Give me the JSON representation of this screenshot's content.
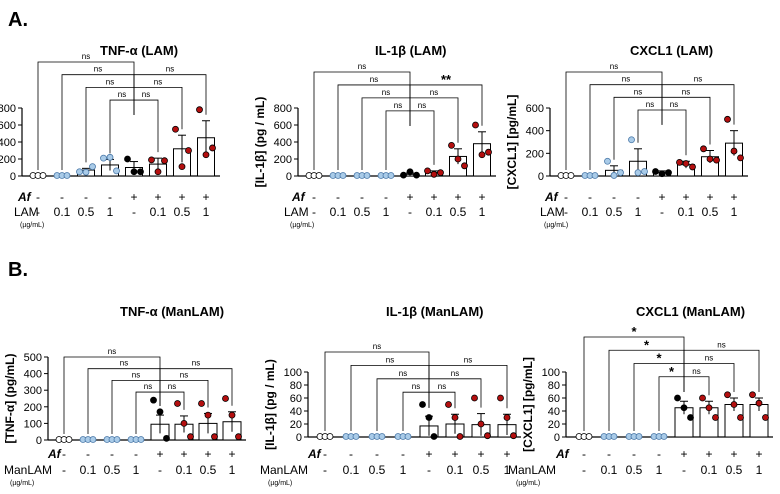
{
  "figure": {
    "panel_a_label": "A.",
    "panel_b_label": "B.",
    "colors": {
      "none": "#ffffff",
      "lam_only": "#a9cbe8",
      "af_only": "#000000",
      "af_lam": "#b40f0f",
      "line": "#000000"
    },
    "af_label": "Af",
    "unit_label": "(µg/mL)",
    "treatment_labels": [
      "-",
      "0.1",
      "0.5",
      "1",
      "-",
      "0.1",
      "0.5",
      "1"
    ],
    "af_marks": [
      "-",
      "-",
      "-",
      "-",
      "+",
      "+",
      "+",
      "+"
    ],
    "marker_types": [
      "none",
      "lam_only",
      "lam_only",
      "lam_only",
      "af_only",
      "af_lam",
      "af_lam",
      "af_lam"
    ]
  },
  "chart_data": [
    {
      "id": "a1",
      "type": "bar",
      "title": "TNF-α (LAM)",
      "ylabel": "[TNF-α] (pg/mL)",
      "stimulus": "LAM",
      "ylim": [
        0,
        800
      ],
      "yticks": [
        0,
        200,
        400,
        600,
        800
      ],
      "categories": [
        "-",
        "0.1",
        "0.5",
        "1",
        "-",
        "0.1",
        "0.5",
        "1"
      ],
      "means": [
        0,
        0,
        70,
        130,
        100,
        140,
        320,
        450
      ],
      "errors": [
        0,
        0,
        20,
        65,
        70,
        70,
        160,
        200
      ],
      "points": [
        [
          0,
          0,
          0
        ],
        [
          0,
          0,
          0
        ],
        [
          50,
          45,
          110
        ],
        [
          210,
          220,
          60
        ],
        [
          200,
          50,
          50
        ],
        [
          190,
          50,
          180
        ],
        [
          550,
          110,
          300
        ],
        [
          780,
          250,
          330
        ]
      ],
      "significance": [
        {
          "from": 4,
          "to": 0,
          "label": "ns"
        },
        {
          "from": 4,
          "to": 1,
          "label": "ns"
        },
        {
          "from": 4,
          "to": 2,
          "label": "ns"
        },
        {
          "from": 4,
          "to": 3,
          "label": "ns"
        },
        {
          "from": 4,
          "to": 5,
          "label": "ns"
        },
        {
          "from": 4,
          "to": 6,
          "label": "ns"
        },
        {
          "from": 4,
          "to": 7,
          "label": "ns"
        }
      ]
    },
    {
      "id": "a2",
      "type": "bar",
      "title": "IL-1β (LAM)",
      "ylabel": "[IL-1β] (pg / mL)",
      "stimulus": "LAM",
      "ylim": [
        0,
        800
      ],
      "yticks": [
        0,
        200,
        400,
        600,
        800
      ],
      "categories": [
        "-",
        "0.1",
        "0.5",
        "1",
        "-",
        "0.1",
        "0.5",
        "1"
      ],
      "means": [
        0,
        0,
        0,
        0,
        20,
        40,
        230,
        380
      ],
      "errors": [
        0,
        0,
        0,
        0,
        15,
        20,
        90,
        140
      ],
      "points": [
        [
          0,
          0,
          0
        ],
        [
          0,
          0,
          0
        ],
        [
          0,
          0,
          0
        ],
        [
          0,
          0,
          0
        ],
        [
          10,
          50,
          10
        ],
        [
          60,
          20,
          40
        ],
        [
          360,
          200,
          120
        ],
        [
          600,
          250,
          280
        ]
      ],
      "significance": [
        {
          "from": 4,
          "to": 0,
          "label": "ns"
        },
        {
          "from": 4,
          "to": 1,
          "label": "ns"
        },
        {
          "from": 4,
          "to": 2,
          "label": "ns"
        },
        {
          "from": 4,
          "to": 3,
          "label": "ns"
        },
        {
          "from": 4,
          "to": 5,
          "label": "ns"
        },
        {
          "from": 4,
          "to": 6,
          "label": "ns"
        },
        {
          "from": 4,
          "to": 7,
          "label": "**"
        }
      ]
    },
    {
      "id": "a3",
      "type": "bar",
      "title": "CXCL1 (LAM)",
      "ylabel": "[CXCL1] [pg/mL]",
      "stimulus": "LAM",
      "ylim": [
        0,
        600
      ],
      "yticks": [
        0,
        200,
        400,
        600
      ],
      "categories": [
        "-",
        "0.1",
        "0.5",
        "1",
        "-",
        "0.1",
        "0.5",
        "1"
      ],
      "means": [
        0,
        0,
        50,
        130,
        30,
        100,
        170,
        290
      ],
      "errors": [
        0,
        0,
        40,
        110,
        15,
        30,
        55,
        110
      ],
      "points": [
        [
          0,
          0,
          0
        ],
        [
          0,
          0,
          0
        ],
        [
          130,
          5,
          30
        ],
        [
          320,
          30,
          40
        ],
        [
          40,
          20,
          30
        ],
        [
          120,
          110,
          80
        ],
        [
          240,
          150,
          140
        ],
        [
          500,
          220,
          160
        ]
      ],
      "significance": [
        {
          "from": 4,
          "to": 0,
          "label": "ns"
        },
        {
          "from": 4,
          "to": 1,
          "label": "ns"
        },
        {
          "from": 4,
          "to": 2,
          "label": "ns"
        },
        {
          "from": 4,
          "to": 3,
          "label": "ns"
        },
        {
          "from": 4,
          "to": 5,
          "label": "ns"
        },
        {
          "from": 4,
          "to": 6,
          "label": "ns"
        },
        {
          "from": 4,
          "to": 7,
          "label": "ns"
        }
      ]
    },
    {
      "id": "b1",
      "type": "bar",
      "title": "TNF-α (ManLAM)",
      "ylabel": "[TNF-α] (pg/mL)",
      "stimulus": "ManLAM",
      "ylim": [
        0,
        500
      ],
      "yticks": [
        0,
        100,
        200,
        300,
        400,
        500
      ],
      "categories": [
        "-",
        "0.1",
        "0.5",
        "1",
        "-",
        "0.1",
        "0.5",
        "1"
      ],
      "means": [
        0,
        0,
        0,
        0,
        95,
        95,
        100,
        110
      ],
      "errors": [
        0,
        0,
        0,
        0,
        55,
        50,
        60,
        60
      ],
      "points": [
        [
          0,
          0,
          0
        ],
        [
          0,
          0,
          0
        ],
        [
          0,
          0,
          0
        ],
        [
          0,
          0,
          0
        ],
        [
          240,
          170,
          10
        ],
        [
          220,
          100,
          20
        ],
        [
          220,
          150,
          20
        ],
        [
          250,
          150,
          20
        ]
      ],
      "significance": [
        {
          "from": 4,
          "to": 0,
          "label": "ns"
        },
        {
          "from": 4,
          "to": 1,
          "label": "ns"
        },
        {
          "from": 4,
          "to": 2,
          "label": "ns"
        },
        {
          "from": 4,
          "to": 3,
          "label": "ns"
        },
        {
          "from": 4,
          "to": 5,
          "label": "ns"
        },
        {
          "from": 4,
          "to": 6,
          "label": "ns"
        },
        {
          "from": 4,
          "to": 7,
          "label": "ns"
        }
      ]
    },
    {
      "id": "b2",
      "type": "bar",
      "title": "IL-1β (ManLAM)",
      "ylabel": "[IL-1β] (pg / mL)",
      "stimulus": "ManLAM",
      "ylim": [
        0,
        100
      ],
      "yticks": [
        0,
        20,
        40,
        60,
        80,
        100
      ],
      "categories": [
        "-",
        "0.1",
        "0.5",
        "1",
        "-",
        "0.1",
        "0.5",
        "1"
      ],
      "means": [
        0,
        0,
        0,
        0,
        17,
        20,
        19,
        19
      ],
      "errors": [
        0,
        0,
        0,
        0,
        15,
        15,
        17,
        16
      ],
      "points": [
        [
          0,
          0,
          0
        ],
        [
          0,
          0,
          0
        ],
        [
          0,
          0,
          0
        ],
        [
          0,
          0,
          0
        ],
        [
          50,
          30,
          0
        ],
        [
          50,
          30,
          0
        ],
        [
          60,
          20,
          2
        ],
        [
          60,
          30,
          2
        ]
      ],
      "significance": [
        {
          "from": 4,
          "to": 0,
          "label": "ns"
        },
        {
          "from": 4,
          "to": 1,
          "label": "ns"
        },
        {
          "from": 4,
          "to": 2,
          "label": "ns"
        },
        {
          "from": 4,
          "to": 3,
          "label": "ns"
        },
        {
          "from": 4,
          "to": 5,
          "label": "ns"
        },
        {
          "from": 4,
          "to": 6,
          "label": "ns"
        },
        {
          "from": 4,
          "to": 7,
          "label": "ns"
        }
      ]
    },
    {
      "id": "b3",
      "type": "bar",
      "title": "CXCL1 (ManLAM)",
      "ylabel": "[CXCL1] [pg/mL]",
      "stimulus": "ManLAM",
      "ylim": [
        0,
        100
      ],
      "yticks": [
        0,
        20,
        40,
        60,
        80,
        100
      ],
      "categories": [
        "-",
        "0.1",
        "0.5",
        "1",
        "-",
        "0.1",
        "0.5",
        "1"
      ],
      "means": [
        0,
        0,
        0,
        0,
        45,
        45,
        50,
        50
      ],
      "errors": [
        0,
        0,
        0,
        0,
        10,
        10,
        10,
        10
      ],
      "points": [
        [
          0,
          0,
          0
        ],
        [
          0,
          0,
          0
        ],
        [
          0,
          0,
          0
        ],
        [
          0,
          0,
          0
        ],
        [
          60,
          45,
          30
        ],
        [
          60,
          45,
          30
        ],
        [
          65,
          50,
          30
        ],
        [
          65,
          52,
          30
        ]
      ],
      "significance": [
        {
          "from": 4,
          "to": 0,
          "label": "*"
        },
        {
          "from": 4,
          "to": 1,
          "label": "*"
        },
        {
          "from": 4,
          "to": 2,
          "label": "*"
        },
        {
          "from": 4,
          "to": 3,
          "label": "*"
        },
        {
          "from": 4,
          "to": 5,
          "label": "ns"
        },
        {
          "from": 4,
          "to": 6,
          "label": "ns"
        },
        {
          "from": 4,
          "to": 7,
          "label": "ns"
        }
      ]
    }
  ]
}
